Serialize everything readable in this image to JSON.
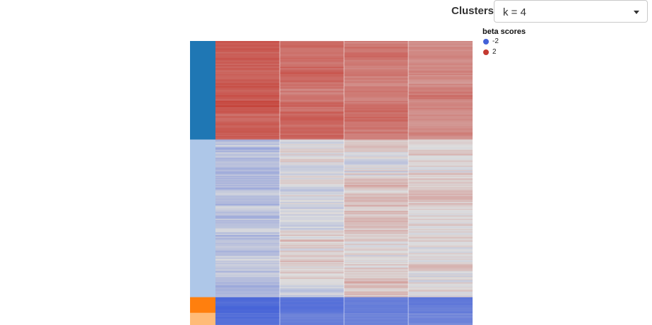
{
  "controls": {
    "clusters_label": "Clusters",
    "cluster_select": {
      "value": "k = 4",
      "options": [
        "k = 4"
      ]
    }
  },
  "legend": {
    "title": "beta scores",
    "items": [
      {
        "label": "-2",
        "color": "#4361d8"
      },
      {
        "label": "2",
        "color": "#c43a31"
      }
    ]
  },
  "colors": {
    "low": "#4361d8",
    "mid": "#dddddd",
    "high": "#c43a31"
  },
  "chart_data": {
    "type": "heatmap",
    "color_scale": {
      "min": -2,
      "max": 2,
      "colors": [
        "#4361d8",
        "#dddddd",
        "#c43a31"
      ]
    },
    "num_columns": 4,
    "clusters": [
      {
        "color": "#1f77b4",
        "row_share": 0.347,
        "column_means": [
          1.55,
          1.35,
          1.25,
          1.05
        ],
        "spread": 0.25
      },
      {
        "color": "#aec7e8",
        "row_share": 0.555,
        "column_means": [
          -0.65,
          0.05,
          0.25,
          0.15
        ],
        "spread": 0.45
      },
      {
        "color": "#ff7f0e",
        "row_share": 0.055,
        "column_means": [
          -1.85,
          -1.65,
          -1.55,
          -1.6
        ],
        "spread": 0.12
      },
      {
        "color": "#ffbb78",
        "row_share": 0.043,
        "column_means": [
          -1.8,
          -1.5,
          -1.45,
          -1.35
        ],
        "spread": 0.15
      }
    ]
  }
}
